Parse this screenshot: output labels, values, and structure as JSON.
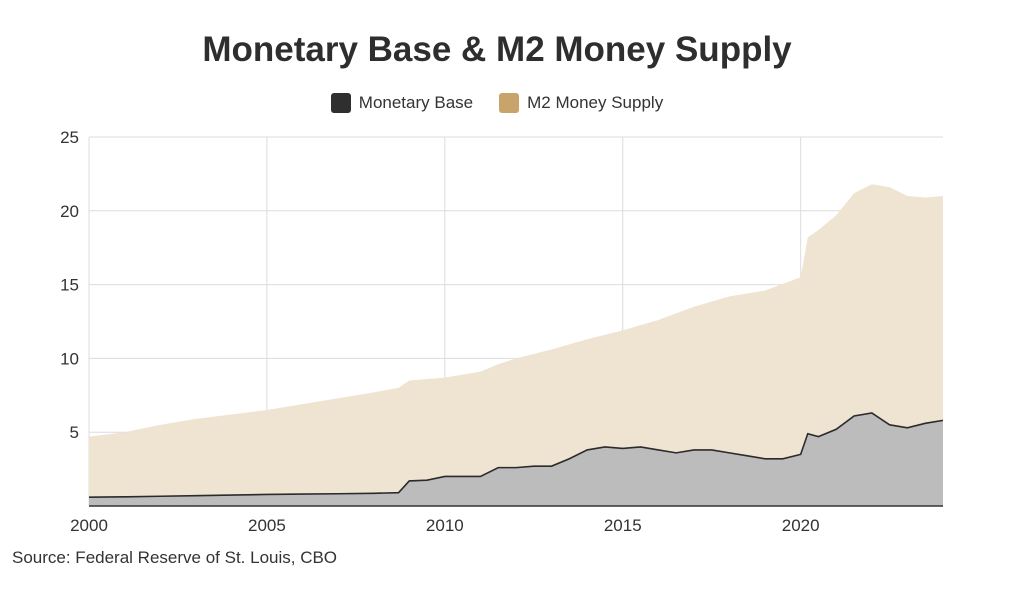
{
  "title": "Monetary Base & M2 Money Supply",
  "source": "Source: Federal Reserve of St. Louis, CBO",
  "colors": {
    "monetary_base_swatch": "#2f2f2f",
    "monetary_base_fill": "#bcbcbc",
    "monetary_base_line": "#2b2b2b",
    "m2_swatch": "#c9a46a",
    "m2_fill": "#efe3d1",
    "grid": "#dcdcdc"
  },
  "chart_data": {
    "type": "area",
    "title": "Monetary Base & M2 Money Supply",
    "xlabel": "",
    "ylabel": "",
    "xlim": [
      2000,
      2024
    ],
    "ylim": [
      0,
      25
    ],
    "x_ticks": [
      2000,
      2005,
      2010,
      2015,
      2020
    ],
    "y_ticks": [
      5,
      10,
      15,
      20,
      25
    ],
    "grid": true,
    "legend_position": "top-center",
    "series": [
      {
        "name": "Monetary Base",
        "x": [
          2000,
          2001,
          2002,
          2003,
          2004,
          2005,
          2006,
          2007,
          2008,
          2008.7,
          2009,
          2009.5,
          2010,
          2010.5,
          2011,
          2011.5,
          2012,
          2012.5,
          2013,
          2013.5,
          2014,
          2014.5,
          2015,
          2015.5,
          2016,
          2016.5,
          2017,
          2017.5,
          2018,
          2018.5,
          2019,
          2019.5,
          2020,
          2020.2,
          2020.5,
          2021,
          2021.5,
          2022,
          2022.5,
          2023,
          2023.5,
          2024
        ],
        "values": [
          0.6,
          0.62,
          0.66,
          0.7,
          0.74,
          0.78,
          0.81,
          0.83,
          0.86,
          0.9,
          1.7,
          1.75,
          2.0,
          2.0,
          2.0,
          2.6,
          2.6,
          2.7,
          2.7,
          3.2,
          3.8,
          4.0,
          3.9,
          4.0,
          3.8,
          3.6,
          3.8,
          3.8,
          3.6,
          3.4,
          3.2,
          3.2,
          3.5,
          4.9,
          4.7,
          5.2,
          6.1,
          6.3,
          5.5,
          5.3,
          5.6,
          5.8
        ]
      },
      {
        "name": "M2 Money Supply",
        "x": [
          2000,
          2001,
          2002,
          2003,
          2004,
          2005,
          2006,
          2007,
          2008,
          2008.7,
          2009,
          2010,
          2011,
          2011.5,
          2012,
          2013,
          2014,
          2015,
          2016,
          2017,
          2018,
          2019,
          2020,
          2020.2,
          2020.5,
          2021,
          2021.5,
          2022,
          2022.5,
          2023,
          2023.5,
          2024
        ],
        "values": [
          4.7,
          5.0,
          5.5,
          5.9,
          6.2,
          6.5,
          6.9,
          7.3,
          7.7,
          8.0,
          8.5,
          8.7,
          9.1,
          9.6,
          10.0,
          10.6,
          11.3,
          11.9,
          12.6,
          13.5,
          14.2,
          14.6,
          15.5,
          18.2,
          18.7,
          19.7,
          21.2,
          21.8,
          21.6,
          21.0,
          20.9,
          21.0
        ]
      }
    ]
  }
}
